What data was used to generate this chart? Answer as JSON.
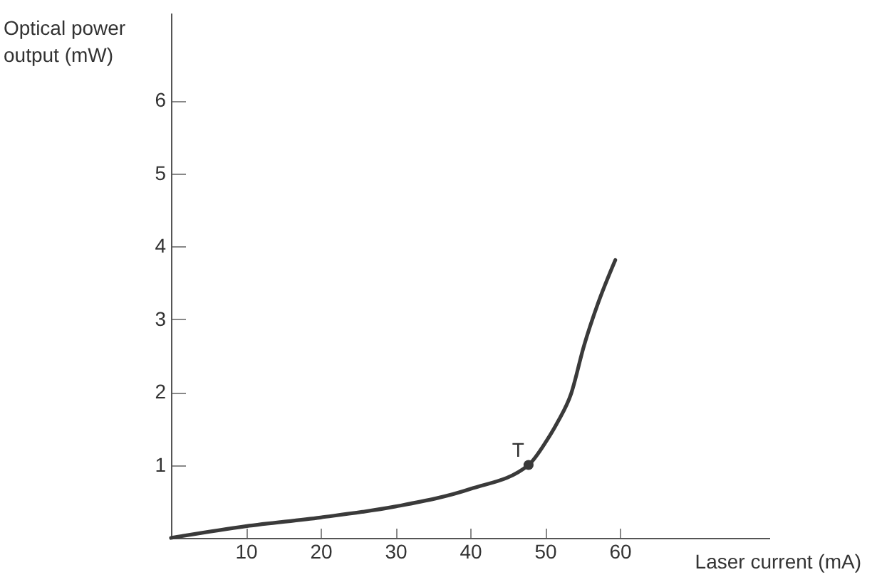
{
  "chart_data": {
    "type": "line",
    "xlabel": "Laser current (mA)",
    "ylabel": "Optical power output (mW)",
    "xlim": [
      0,
      80
    ],
    "xticks": [
      10,
      20,
      30,
      40,
      50,
      60
    ],
    "ylim": [
      0,
      7.2
    ],
    "yticks": [
      1,
      2,
      3,
      4,
      5,
      6
    ],
    "grid": false,
    "series": [
      {
        "color": "#3a3a3a",
        "marker": "none",
        "x": [
          0,
          10,
          20,
          30,
          40,
          47.8,
          50.2,
          51.7,
          53.5,
          55.2,
          57.1,
          59.4
        ],
        "values": [
          0,
          0.16,
          0.28,
          0.43,
          0.67,
          1.0,
          1.33,
          1.59,
          1.98,
          2.63,
          3.22,
          3.81
        ]
      },
      {
        "type": "scatter",
        "color": "#3a3a3a",
        "marker": "circle",
        "x": [
          47.8
        ],
        "values": [
          1.0
        ]
      }
    ],
    "annotations": [
      {
        "text": "T",
        "x": 47.8,
        "y": 1.0
      }
    ]
  }
}
